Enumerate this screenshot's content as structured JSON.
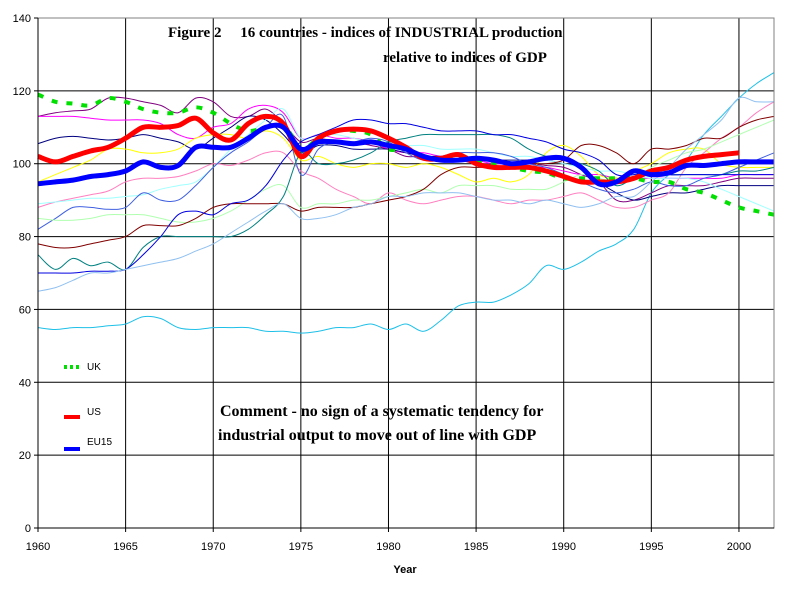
{
  "chart_data": {
    "type": "line",
    "title_line1": "Figure 2     16 countries - indices of INDUSTRIAL production",
    "title_line2": "relative to indices of GDP",
    "xlabel": "Year",
    "ylabel": "",
    "xlim": [
      1960,
      2002
    ],
    "ylim": [
      0,
      140
    ],
    "x_ticks": [
      "1960",
      "1965",
      "1970",
      "1975",
      "1980",
      "1985",
      "1990",
      "1995",
      "2000"
    ],
    "y_ticks": [
      "0",
      "20",
      "40",
      "60",
      "80",
      "100",
      "120",
      "140"
    ],
    "grid": true,
    "legend_position": "left-center",
    "legend": [
      {
        "name": "UK",
        "color": "#00e000",
        "style": "dotted"
      },
      {
        "name": "US",
        "color": "#ff0000",
        "style": "solid"
      },
      {
        "name": "EU15",
        "color": "#0000ff",
        "style": "solid"
      }
    ],
    "comment_line1": "Comment - no sign of a systematic tendency for",
    "comment_line2": "industrial output to move out of line with GDP",
    "x_start": 1960,
    "series": [
      {
        "name": "UK",
        "color": "#00e000",
        "width": 4,
        "dash": "6,9",
        "values": [
          119,
          117,
          116.5,
          116,
          118,
          117,
          115,
          114,
          114,
          115.5,
          114,
          111,
          109,
          110,
          111,
          104,
          107,
          109,
          109,
          108,
          104,
          104,
          102,
          101,
          102,
          101,
          100,
          99,
          98,
          97.5,
          96,
          96,
          96,
          96,
          96,
          95,
          95,
          93,
          92,
          90,
          88,
          87,
          86
        ]
      },
      {
        "name": "US",
        "color": "#ff0000",
        "width": 5,
        "dash": "",
        "values": [
          102,
          100.5,
          102,
          103.5,
          104.5,
          107,
          110,
          110,
          110.5,
          112.5,
          108.5,
          106.5,
          111,
          113,
          111,
          102,
          107,
          109,
          109.5,
          109,
          107,
          104.5,
          101.5,
          101.5,
          102.5,
          100,
          99,
          99,
          99,
          98,
          96.5,
          95,
          95,
          95,
          96,
          98,
          99,
          101,
          102,
          102.5,
          103
        ]
      },
      {
        "name": "EU15",
        "color": "#0000ff",
        "width": 5,
        "dash": "",
        "values": [
          94.5,
          95,
          95.5,
          96.5,
          97,
          98,
          100.5,
          99,
          99.5,
          104.5,
          104.5,
          104.5,
          107,
          110,
          110,
          104,
          106,
          106,
          105.5,
          106,
          105,
          104,
          102,
          101,
          101,
          101.5,
          101,
          100,
          100.5,
          101.5,
          101.5,
          99,
          94.5,
          95,
          98,
          97,
          97.5,
          99.5,
          99.5,
          100,
          100.5,
          100.5,
          100.5
        ]
      },
      {
        "name": "country-cyan",
        "color": "#1ec0e8",
        "width": 1,
        "dash": "",
        "values": [
          55,
          54.5,
          55,
          55,
          55.5,
          56,
          58,
          57.5,
          55,
          54.5,
          55,
          55,
          55,
          54,
          54,
          53.5,
          54,
          55,
          55,
          56,
          54.5,
          56,
          54,
          57,
          61,
          62,
          62,
          64,
          67,
          72,
          71,
          73,
          76,
          78,
          82,
          92,
          97,
          101,
          108,
          113,
          118,
          122,
          125
        ]
      },
      {
        "name": "country-purple",
        "color": "#800080",
        "width": 1,
        "dash": "",
        "values": [
          113,
          114,
          114.5,
          115,
          118,
          118,
          117,
          116,
          114,
          118,
          117,
          113,
          113,
          115,
          111,
          106,
          107,
          106,
          106,
          105,
          104,
          102,
          102,
          101,
          101,
          100,
          100,
          100,
          100,
          99.5,
          99,
          97,
          95,
          90,
          90,
          92,
          94,
          94,
          94,
          95,
          96,
          96,
          96
        ]
      },
      {
        "name": "country-magenta",
        "color": "#ff00ff",
        "width": 1,
        "dash": "",
        "values": [
          113,
          113,
          113,
          112.5,
          112,
          112,
          112,
          111,
          108,
          107,
          110,
          111,
          115,
          116,
          114,
          107,
          108,
          107,
          107,
          106,
          104,
          103,
          103,
          102,
          102,
          101,
          100,
          100,
          99,
          99,
          98,
          97,
          97,
          96,
          96,
          96,
          96,
          96,
          96,
          96,
          97,
          97,
          97
        ]
      },
      {
        "name": "country-navy",
        "color": "#000080",
        "width": 1,
        "dash": "",
        "values": [
          105.5,
          107,
          107.5,
          107,
          106.5,
          107,
          108,
          107,
          106,
          104,
          107,
          110,
          113,
          112,
          108,
          103,
          105,
          105,
          104,
          104,
          104,
          103,
          102,
          102,
          101,
          101,
          101,
          101,
          101,
          101,
          100,
          99,
          95,
          92,
          90,
          91,
          92,
          92,
          93,
          94,
          94,
          94,
          94
        ]
      },
      {
        "name": "country-yellow",
        "color": "#ffff00",
        "width": 1,
        "dash": "",
        "values": [
          95,
          97,
          99,
          101,
          104,
          104,
          103,
          103,
          104,
          107,
          108,
          108,
          107,
          109,
          107,
          101,
          102,
          100,
          99,
          100,
          100,
          99,
          100,
          99,
          97,
          95,
          96,
          95,
          97,
          103,
          105,
          102,
          97,
          96,
          98,
          100,
          103,
          104,
          104,
          100,
          99,
          99,
          99
        ]
      },
      {
        "name": "country-pink",
        "color": "#ff80c0",
        "width": 1,
        "dash": "",
        "values": [
          88,
          89.5,
          90.5,
          91.5,
          92.5,
          95,
          96,
          96,
          96.5,
          98,
          100,
          99.5,
          101,
          103,
          103,
          98,
          96,
          93,
          91,
          89,
          92,
          90,
          89,
          90,
          91,
          91,
          90,
          89,
          90,
          90,
          91,
          92,
          90,
          88,
          88,
          90,
          92,
          99,
          103,
          107,
          110,
          114,
          117
        ]
      },
      {
        "name": "country-lightcyan",
        "color": "#a0ffff",
        "width": 1,
        "dash": "",
        "values": [
          89,
          89.5,
          90,
          90.5,
          90.5,
          91,
          91.5,
          93,
          94,
          95,
          99,
          104,
          108,
          112,
          115,
          107,
          108,
          108,
          107,
          106,
          106,
          105,
          105,
          104,
          104,
          104,
          103,
          102,
          102,
          101,
          100,
          99,
          98,
          98,
          97,
          96,
          96,
          96,
          95,
          93,
          91,
          89,
          87
        ]
      },
      {
        "name": "country-royalblue",
        "color": "#4060e0",
        "width": 1,
        "dash": "",
        "values": [
          82,
          85,
          88,
          88,
          87.5,
          88,
          92,
          90,
          90,
          94,
          99,
          103,
          106,
          110,
          113,
          97,
          104,
          106,
          106,
          107,
          106,
          103,
          101,
          102,
          103,
          103,
          103,
          102,
          100,
          99,
          97,
          95,
          93,
          92,
          93,
          95,
          94,
          94,
          96,
          97,
          99,
          101,
          103
        ]
      },
      {
        "name": "country-lightgreen",
        "color": "#b0ffb0",
        "width": 1,
        "dash": "",
        "values": [
          85,
          84.5,
          84.5,
          85,
          86,
          86,
          86,
          85,
          84,
          84,
          85,
          87,
          90,
          93,
          94,
          88,
          89,
          89,
          90,
          90,
          91,
          92,
          93,
          92,
          94,
          94,
          94,
          93,
          93,
          93,
          95,
          97,
          96,
          95,
          96,
          99,
          101,
          103,
          104,
          106,
          108,
          110,
          112
        ]
      },
      {
        "name": "country-darkred",
        "color": "#800000",
        "width": 1,
        "dash": "",
        "values": [
          78,
          77,
          77,
          78,
          79,
          80,
          83,
          83,
          83,
          85,
          88,
          89,
          89,
          89,
          89,
          87,
          88,
          88,
          88,
          89,
          90,
          91,
          93,
          97,
          99,
          99,
          99,
          99,
          100,
          100,
          101,
          105,
          105,
          103,
          100,
          104,
          104,
          105,
          107,
          107,
          110,
          112,
          113
        ]
      },
      {
        "name": "country-teal",
        "color": "#008080",
        "width": 1,
        "dash": "",
        "values": [
          75,
          71,
          74,
          72,
          73,
          71,
          77,
          80,
          80,
          80,
          80,
          80,
          82,
          86,
          91,
          103,
          100,
          100,
          101,
          103,
          106,
          107,
          108,
          108,
          108,
          108,
          108,
          107,
          104,
          102,
          101,
          100,
          98,
          94,
          96,
          97,
          97,
          97,
          97,
          97,
          98,
          98,
          99
        ]
      },
      {
        "name": "country-blue",
        "color": "#0000e0",
        "width": 1,
        "dash": "",
        "values": [
          70,
          70,
          70,
          70.5,
          70.5,
          71,
          75,
          80,
          86,
          87,
          86,
          89,
          90,
          94,
          101,
          106,
          108,
          110,
          112,
          112,
          111,
          111,
          110,
          109,
          109,
          109,
          108,
          108,
          107,
          106,
          104,
          103,
          101,
          97,
          97,
          98,
          97,
          97,
          97,
          97,
          97,
          97,
          97
        ]
      },
      {
        "name": "country-lightblue",
        "color": "#90c0f0",
        "width": 1,
        "dash": "",
        "values": [
          65,
          66,
          68,
          70,
          70,
          71,
          72,
          73,
          74,
          76,
          78,
          81,
          84,
          87,
          89,
          85,
          85,
          86,
          88,
          89,
          91,
          91,
          92,
          92,
          92,
          91,
          90,
          90,
          89,
          90,
          89,
          88,
          89,
          91,
          91,
          95,
          99,
          104,
          108,
          112,
          118,
          117,
          117
        ]
      }
    ]
  }
}
